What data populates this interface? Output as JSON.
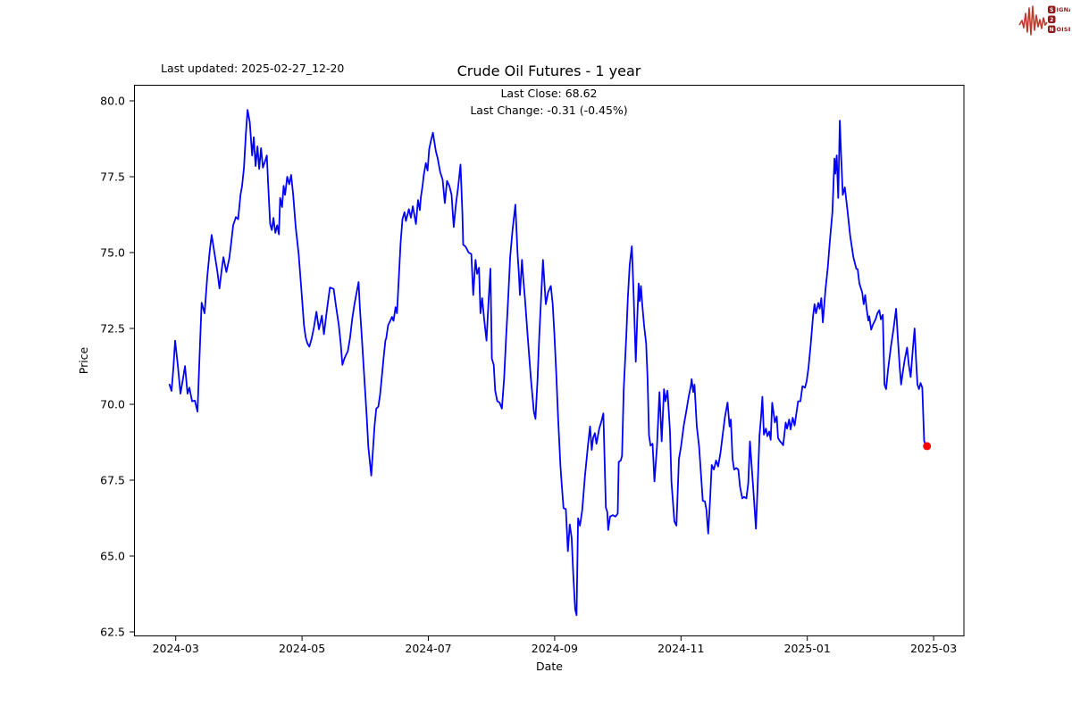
{
  "page": {
    "background": "#ffffff"
  },
  "header": {
    "last_updated_text": "Last updated: 2025-02-27_12-20",
    "logo": {
      "name": "signal-2-noise-logo",
      "color_waveform": "#c0392b",
      "color_dark": "#8e1b1b",
      "line1_initial": "S",
      "line1_rest": "IGNAL",
      "line2": "2",
      "line3_initial": "N",
      "line3_rest": "OISE"
    }
  },
  "chart": {
    "title": "Crude Oil Futures - 1 year",
    "annotation_line1": "Last Close: 68.62",
    "annotation_line2": "Last Change: -0.31 (-0.45%)",
    "xlabel": "Date",
    "ylabel": "Price",
    "line_color": "#0000ff",
    "last_point_color": "#ff0000",
    "x_tick_labels": [
      "2024-03",
      "2024-05",
      "2024-07",
      "2024-09",
      "2024-11",
      "2025-01",
      "2025-03"
    ],
    "y_tick_labels": [
      "80.0",
      "77.5",
      "75.0",
      "72.5",
      "70.0",
      "67.5",
      "65.0",
      "62.5"
    ]
  },
  "chart_data": {
    "type": "line",
    "title": "Crude Oil Futures - 1 year",
    "xlabel": "Date",
    "ylabel": "Price",
    "legend": null,
    "grid": false,
    "last_close": 68.62,
    "last_change": -0.31,
    "last_change_pct": "-0.45%",
    "x_start_date": "2024-02-27",
    "x_end_date": "2025-02-26",
    "x_unit": "days_since_2024-02-27",
    "x_tick_dates": [
      "2024-03-01",
      "2024-05-01",
      "2024-07-01",
      "2024-09-01",
      "2024-11-01",
      "2025-01-01",
      "2025-03-01"
    ],
    "x_tick_day_offsets": [
      3,
      64,
      125,
      187,
      248,
      309,
      368
    ],
    "ylim": [
      62.2,
      80.6
    ],
    "y_ticks": [
      62.5,
      65.0,
      67.5,
      70.0,
      72.5,
      75.0,
      77.5,
      80.0
    ],
    "points": [
      [
        0,
        70.65
      ],
      [
        1,
        70.44
      ],
      [
        1.9,
        71.2
      ],
      [
        2.7,
        72.1
      ],
      [
        4,
        71.3
      ],
      [
        5.3,
        70.35
      ],
      [
        6.4,
        70.8
      ],
      [
        7.5,
        71.26
      ],
      [
        8.7,
        70.35
      ],
      [
        9.6,
        70.55
      ],
      [
        10.9,
        70.1
      ],
      [
        12.2,
        70.12
      ],
      [
        13.5,
        69.76
      ],
      [
        14.5,
        71.6
      ],
      [
        15.5,
        73.35
      ],
      [
        16.9,
        73
      ],
      [
        18.2,
        74.2
      ],
      [
        19.3,
        75
      ],
      [
        20.3,
        75.58
      ],
      [
        22,
        74.85
      ],
      [
        23,
        74.4
      ],
      [
        24.1,
        73.82
      ],
      [
        25.1,
        74.4
      ],
      [
        26,
        74.85
      ],
      [
        27.4,
        74.36
      ],
      [
        28.8,
        74.8
      ],
      [
        29.7,
        75.3
      ],
      [
        30.7,
        75.9
      ],
      [
        32,
        76.17
      ],
      [
        33.1,
        76.1
      ],
      [
        34.2,
        76.9
      ],
      [
        35,
        77.2
      ],
      [
        35.9,
        77.8
      ],
      [
        36.8,
        78.9
      ],
      [
        37.6,
        79.7
      ],
      [
        38.7,
        79.3
      ],
      [
        39.8,
        78.2
      ],
      [
        40.6,
        78.8
      ],
      [
        41.5,
        77.85
      ],
      [
        42.4,
        78.5
      ],
      [
        43.2,
        77.76
      ],
      [
        44.1,
        78.44
      ],
      [
        45,
        77.8
      ],
      [
        46,
        78
      ],
      [
        46.9,
        78.2
      ],
      [
        47.5,
        77.3
      ],
      [
        48.5,
        75.94
      ],
      [
        49.3,
        75.74
      ],
      [
        50.1,
        76.14
      ],
      [
        51,
        75.65
      ],
      [
        51.9,
        75.9
      ],
      [
        52.7,
        75.6
      ],
      [
        53.3,
        76.8
      ],
      [
        54.2,
        76.5
      ],
      [
        55,
        77.2
      ],
      [
        55.7,
        76.9
      ],
      [
        56.7,
        77.5
      ],
      [
        57.7,
        77.25
      ],
      [
        58.6,
        77.56
      ],
      [
        59.6,
        76.9
      ],
      [
        60.8,
        75.84
      ],
      [
        62.2,
        74.96
      ],
      [
        63.5,
        73.8
      ],
      [
        64.8,
        72.6
      ],
      [
        65.6,
        72.2
      ],
      [
        66.5,
        72
      ],
      [
        67.4,
        71.9
      ],
      [
        68.4,
        72.15
      ],
      [
        69.5,
        72.5
      ],
      [
        70.8,
        73.05
      ],
      [
        72,
        72.47
      ],
      [
        73.4,
        72.92
      ],
      [
        74.4,
        72.31
      ],
      [
        75.8,
        73.1
      ],
      [
        77.3,
        73.85
      ],
      [
        79.1,
        73.8
      ],
      [
        80.3,
        73.2
      ],
      [
        81.6,
        72.6
      ],
      [
        82.5,
        72
      ],
      [
        83.3,
        71.3
      ],
      [
        84.2,
        71.5
      ],
      [
        85,
        71.62
      ],
      [
        85.9,
        71.74
      ],
      [
        87,
        72.2
      ],
      [
        88,
        72.8
      ],
      [
        89.1,
        73.3
      ],
      [
        90.2,
        73.7
      ],
      [
        91.1,
        74.03
      ],
      [
        91.7,
        73.2
      ],
      [
        92.4,
        72.5
      ],
      [
        93.2,
        71.6
      ],
      [
        94.1,
        70.6
      ],
      [
        95,
        69.6
      ],
      [
        95.8,
        68.6
      ],
      [
        96.7,
        68
      ],
      [
        97.2,
        67.65
      ],
      [
        98,
        68.5
      ],
      [
        98.8,
        69.3
      ],
      [
        99.6,
        69.86
      ],
      [
        100.6,
        69.92
      ],
      [
        101.4,
        70.3
      ],
      [
        102.3,
        70.9
      ],
      [
        103.1,
        71.5
      ],
      [
        104,
        72.1
      ],
      [
        104.4,
        72.17
      ],
      [
        105.3,
        72.6
      ],
      [
        106,
        72.7
      ],
      [
        107.2,
        72.88
      ],
      [
        107.9,
        72.75
      ],
      [
        108.9,
        73.2
      ],
      [
        109.6,
        73
      ],
      [
        110.5,
        74.2
      ],
      [
        111.3,
        75.3
      ],
      [
        112.2,
        76.1
      ],
      [
        113.2,
        76.33
      ],
      [
        113.9,
        76.04
      ],
      [
        115.3,
        76.43
      ],
      [
        116.3,
        76.15
      ],
      [
        117.2,
        76.53
      ],
      [
        118.7,
        75.94
      ],
      [
        119.7,
        76.73
      ],
      [
        120.6,
        76.4
      ],
      [
        121.1,
        76.82
      ],
      [
        121.9,
        77.2
      ],
      [
        122.5,
        77.56
      ],
      [
        123.5,
        77.95
      ],
      [
        124.3,
        77.7
      ],
      [
        125.1,
        78.4
      ],
      [
        126,
        78.7
      ],
      [
        126.9,
        78.95
      ],
      [
        128.3,
        78.34
      ],
      [
        129.2,
        78.1
      ],
      [
        130.4,
        77.66
      ],
      [
        131.6,
        77.4
      ],
      [
        132.6,
        76.63
      ],
      [
        133.7,
        77.36
      ],
      [
        134.8,
        77.2
      ],
      [
        135.9,
        76.9
      ],
      [
        136.9,
        75.84
      ],
      [
        138,
        76.6
      ],
      [
        139.1,
        77.2
      ],
      [
        140.2,
        77.9
      ],
      [
        141.1,
        76.3
      ],
      [
        141.5,
        75.26
      ],
      [
        142.6,
        75.2
      ],
      [
        144.1,
        75
      ],
      [
        145.4,
        74.95
      ],
      [
        146.3,
        73.6
      ],
      [
        147.4,
        74.76
      ],
      [
        148.2,
        74.3
      ],
      [
        149.1,
        74.5
      ],
      [
        149.8,
        73
      ],
      [
        150.6,
        73.5
      ],
      [
        151.6,
        72.8
      ],
      [
        152.7,
        72.1
      ],
      [
        153.6,
        73.3
      ],
      [
        154.6,
        74.47
      ],
      [
        155.3,
        71.5
      ],
      [
        156.2,
        71.3
      ],
      [
        156.9,
        70.45
      ],
      [
        157.9,
        70.1
      ],
      [
        159,
        70.06
      ],
      [
        160.1,
        69.86
      ],
      [
        161.2,
        70.84
      ],
      [
        162.2,
        72.3
      ],
      [
        162.8,
        73
      ],
      [
        163.5,
        74
      ],
      [
        164.1,
        74.86
      ],
      [
        165.2,
        75.7
      ],
      [
        166.6,
        76.58
      ],
      [
        167.7,
        74.96
      ],
      [
        168.3,
        74.32
      ],
      [
        168.8,
        73.6
      ],
      [
        169.8,
        74.76
      ],
      [
        170.5,
        74.08
      ],
      [
        171.2,
        73.5
      ],
      [
        172.6,
        72.2
      ],
      [
        174.1,
        70.84
      ],
      [
        175.5,
        69.76
      ],
      [
        176.3,
        69.52
      ],
      [
        177.3,
        70.8
      ],
      [
        178.1,
        72.2
      ],
      [
        179,
        73.5
      ],
      [
        179.9,
        74.76
      ],
      [
        181,
        73.6
      ],
      [
        181.3,
        73.3
      ],
      [
        182.4,
        73.7
      ],
      [
        183.7,
        73.9
      ],
      [
        184.6,
        73.3
      ],
      [
        185.4,
        72.3
      ],
      [
        186.3,
        71
      ],
      [
        187.2,
        69.5
      ],
      [
        187.8,
        68.74
      ],
      [
        188.3,
        68
      ],
      [
        188.9,
        67.4
      ],
      [
        189.8,
        66.58
      ],
      [
        190.9,
        66.55
      ],
      [
        191.9,
        65.16
      ],
      [
        192.8,
        66.04
      ],
      [
        193.7,
        65.6
      ],
      [
        194.5,
        64.4
      ],
      [
        195.4,
        63.25
      ],
      [
        196.1,
        63.05
      ],
      [
        196.8,
        66.24
      ],
      [
        197.7,
        66
      ],
      [
        198.8,
        66.5
      ],
      [
        200.1,
        67.6
      ],
      [
        201.5,
        68.6
      ],
      [
        202.6,
        69.27
      ],
      [
        203.4,
        68.5
      ],
      [
        204.1,
        68.9
      ],
      [
        204.9,
        69.05
      ],
      [
        205.7,
        68.7
      ],
      [
        207,
        69.2
      ],
      [
        208.1,
        69.45
      ],
      [
        209,
        69.7
      ],
      [
        210.2,
        66.6
      ],
      [
        210.9,
        66.45
      ],
      [
        211.3,
        65.86
      ],
      [
        212.2,
        66.3
      ],
      [
        213.5,
        66.35
      ],
      [
        214.8,
        66.3
      ],
      [
        215.9,
        66.4
      ],
      [
        216.4,
        68.1
      ],
      [
        217.4,
        68.15
      ],
      [
        218,
        68.3
      ],
      [
        218.8,
        70.5
      ],
      [
        220,
        72.2
      ],
      [
        220.8,
        73.5
      ],
      [
        221.7,
        74.6
      ],
      [
        222.7,
        75.21
      ],
      [
        223.6,
        73.6
      ],
      [
        224.6,
        71.4
      ],
      [
        225.3,
        72.8
      ],
      [
        226,
        73.98
      ],
      [
        226.5,
        73.4
      ],
      [
        227.1,
        73.9
      ],
      [
        227.7,
        73.3
      ],
      [
        228.6,
        72.6
      ],
      [
        229.6,
        72
      ],
      [
        230.3,
        70.84
      ],
      [
        231,
        68.98
      ],
      [
        231.7,
        68.64
      ],
      [
        232.7,
        68.7
      ],
      [
        233.6,
        67.46
      ],
      [
        234.8,
        68.6
      ],
      [
        236,
        70.4
      ],
      [
        237.1,
        68.78
      ],
      [
        238.2,
        70.5
      ],
      [
        238.9,
        70.1
      ],
      [
        239.9,
        70.45
      ],
      [
        241.1,
        69.1
      ],
      [
        241.8,
        67.46
      ],
      [
        243.2,
        66.14
      ],
      [
        244.2,
        66
      ],
      [
        245.4,
        68.2
      ],
      [
        246.4,
        68.6
      ],
      [
        247.7,
        69.3
      ],
      [
        249,
        69.8
      ],
      [
        250.1,
        70.25
      ],
      [
        251.1,
        70.6
      ],
      [
        251.5,
        70.83
      ],
      [
        252.3,
        70.4
      ],
      [
        252.9,
        70.65
      ],
      [
        254,
        69.27
      ],
      [
        255.1,
        68.6
      ],
      [
        256.1,
        67.6
      ],
      [
        256.9,
        66.82
      ],
      [
        257.9,
        66.8
      ],
      [
        258.7,
        66.5
      ],
      [
        259,
        66.18
      ],
      [
        259.5,
        65.74
      ],
      [
        260.5,
        67
      ],
      [
        261.2,
        68
      ],
      [
        262.2,
        67.85
      ],
      [
        263.3,
        68.15
      ],
      [
        264.3,
        67.95
      ],
      [
        265.4,
        68.4
      ],
      [
        266.5,
        69
      ],
      [
        267.6,
        69.6
      ],
      [
        268.8,
        70.06
      ],
      [
        269.8,
        69.27
      ],
      [
        270.4,
        69.5
      ],
      [
        271.2,
        68.2
      ],
      [
        272,
        67.85
      ],
      [
        273,
        67.9
      ],
      [
        274,
        67.85
      ],
      [
        274.8,
        67.3
      ],
      [
        275.9,
        66.9
      ],
      [
        276.8,
        66.95
      ],
      [
        277.9,
        66.9
      ],
      [
        278.8,
        67.4
      ],
      [
        279.6,
        68.78
      ],
      [
        280.3,
        68.1
      ],
      [
        281.4,
        67
      ],
      [
        282.5,
        65.9
      ],
      [
        283.3,
        67.3
      ],
      [
        284.2,
        68.98
      ],
      [
        285,
        69.6
      ],
      [
        285.6,
        70.25
      ],
      [
        286.3,
        69
      ],
      [
        287.3,
        69.2
      ],
      [
        288,
        68.95
      ],
      [
        288.9,
        69.1
      ],
      [
        289.6,
        68.83
      ],
      [
        290.3,
        70.05
      ],
      [
        291.6,
        69.4
      ],
      [
        292.5,
        69.6
      ],
      [
        293.1,
        68.9
      ],
      [
        293.9,
        68.8
      ],
      [
        294.9,
        68.72
      ],
      [
        295.6,
        68.65
      ],
      [
        296.8,
        69.4
      ],
      [
        297.5,
        69.2
      ],
      [
        298.5,
        69.5
      ],
      [
        299.2,
        69.17
      ],
      [
        300.2,
        69.56
      ],
      [
        301.1,
        69.3
      ],
      [
        302.8,
        70.1
      ],
      [
        303.9,
        70.1
      ],
      [
        304.9,
        70.6
      ],
      [
        306.1,
        70.55
      ],
      [
        306.9,
        70.75
      ],
      [
        307.8,
        71.2
      ],
      [
        308.9,
        72
      ],
      [
        310,
        72.9
      ],
      [
        310.7,
        73.3
      ],
      [
        311.4,
        73
      ],
      [
        312.5,
        73.34
      ],
      [
        313.2,
        73.15
      ],
      [
        314,
        73.5
      ],
      [
        314.7,
        72.7
      ],
      [
        316,
        73.8
      ],
      [
        317.1,
        74.5
      ],
      [
        318.1,
        75.4
      ],
      [
        319.3,
        76.33
      ],
      [
        320.3,
        78.1
      ],
      [
        320.7,
        77.6
      ],
      [
        321.4,
        78.2
      ],
      [
        322.1,
        76.8
      ],
      [
        322.9,
        79.35
      ],
      [
        323.6,
        78.1
      ],
      [
        324.3,
        76.9
      ],
      [
        325.3,
        77.15
      ],
      [
        326.5,
        76.43
      ],
      [
        327.9,
        75.55
      ],
      [
        329.4,
        74.86
      ],
      [
        330.8,
        74.47
      ],
      [
        331.5,
        74.45
      ],
      [
        332.3,
        73.98
      ],
      [
        333.7,
        73.68
      ],
      [
        334.4,
        73.3
      ],
      [
        335.1,
        73.6
      ],
      [
        335.8,
        73.15
      ],
      [
        336.6,
        72.76
      ],
      [
        337.1,
        72.9
      ],
      [
        338,
        72.46
      ],
      [
        338.8,
        72.62
      ],
      [
        340.1,
        72.8
      ],
      [
        341,
        73
      ],
      [
        341.9,
        73.1
      ],
      [
        342.7,
        72.8
      ],
      [
        343.6,
        72.95
      ],
      [
        344.4,
        70.65
      ],
      [
        345.2,
        70.5
      ],
      [
        346.2,
        71.2
      ],
      [
        347.5,
        71.9
      ],
      [
        348.8,
        72.5
      ],
      [
        350,
        73.15
      ],
      [
        350.8,
        72.2
      ],
      [
        351.7,
        71.24
      ],
      [
        352.4,
        70.65
      ],
      [
        353.3,
        71.1
      ],
      [
        354.2,
        71.5
      ],
      [
        355.3,
        71.87
      ],
      [
        356.1,
        71.3
      ],
      [
        357,
        70.9
      ],
      [
        357.9,
        71.7
      ],
      [
        358.9,
        72.5
      ],
      [
        359.6,
        71.5
      ],
      [
        360.3,
        70.65
      ],
      [
        361,
        70.5
      ],
      [
        361.8,
        70.7
      ],
      [
        362.6,
        70.55
      ],
      [
        363.5,
        68.8
      ],
      [
        364.1,
        68.65
      ],
      [
        364.9,
        68.62
      ]
    ]
  }
}
